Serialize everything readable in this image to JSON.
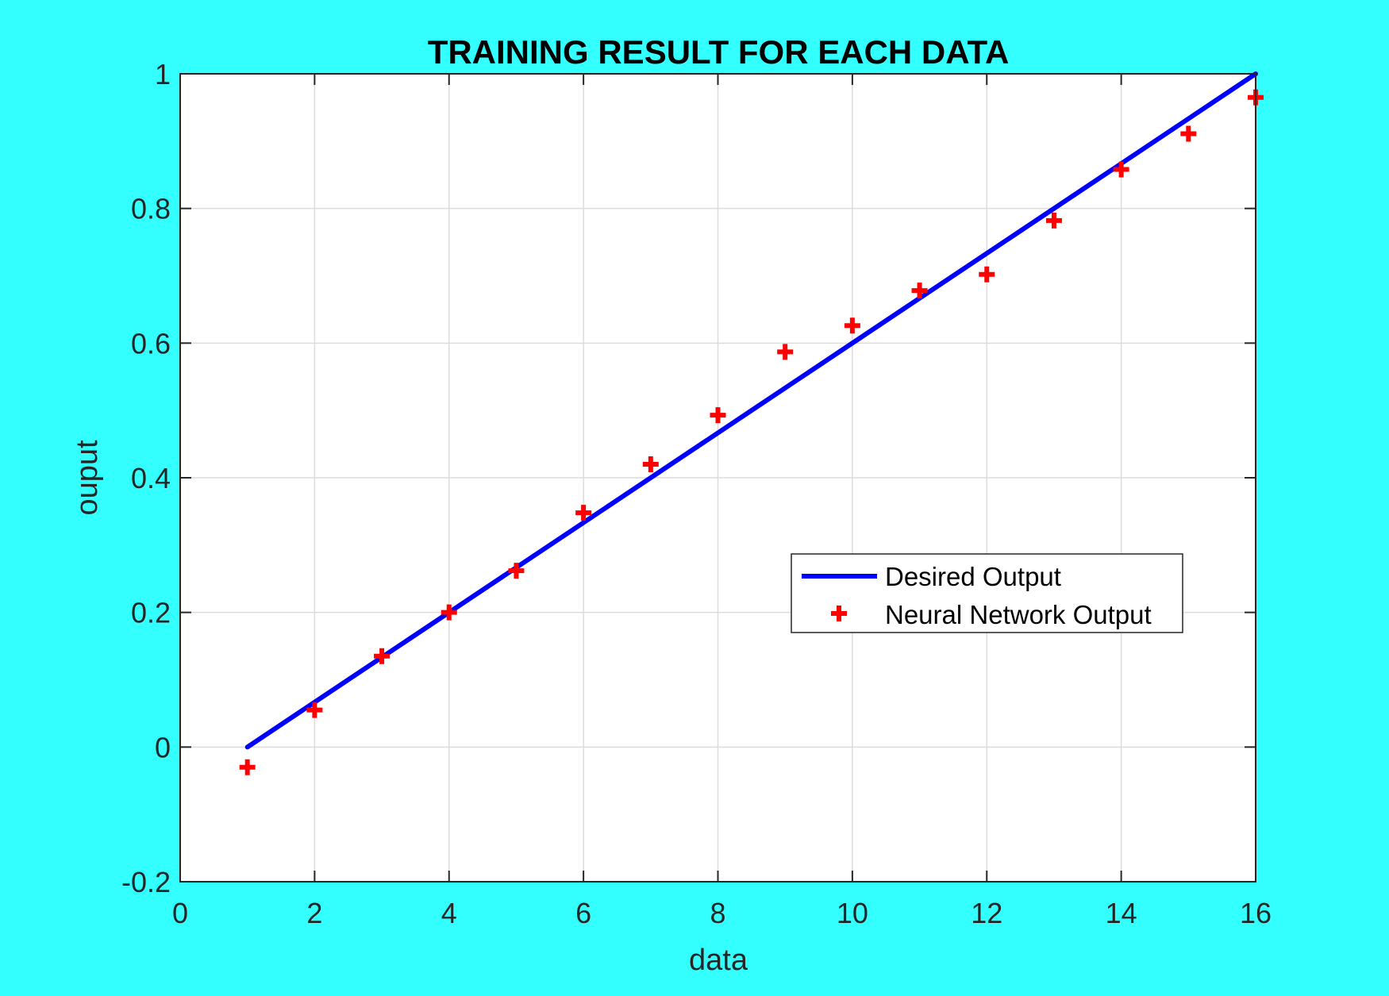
{
  "chart_data": {
    "type": "line",
    "title": "TRAINING RESULT FOR EACH DATA",
    "xlabel": "data",
    "ylabel": "ouput",
    "xlim": [
      0,
      16
    ],
    "ylim": [
      -0.2,
      1
    ],
    "x_ticks": [
      "0",
      "2",
      "4",
      "6",
      "8",
      "10",
      "12",
      "14",
      "16"
    ],
    "y_ticks": [
      "-0.2",
      "0",
      "0.2",
      "0.4",
      "0.6",
      "0.8",
      "1"
    ],
    "grid": true,
    "legend_position": "right, middle",
    "series": [
      {
        "name": "Desired Output",
        "style": "line",
        "color": "#0000ff",
        "x": [
          1,
          16
        ],
        "y": [
          0,
          1
        ]
      },
      {
        "name": "Neural Network Output",
        "style": "marker-plus",
        "color": "#ff0000",
        "x": [
          1,
          2,
          3,
          4,
          5,
          6,
          7,
          8,
          9,
          10,
          11,
          12,
          13,
          14,
          15,
          16
        ],
        "y": [
          -0.03,
          0.055,
          0.135,
          0.2,
          0.262,
          0.348,
          0.42,
          0.493,
          0.587,
          0.626,
          0.678,
          0.702,
          0.782,
          0.858,
          0.911,
          0.965
        ]
      }
    ]
  }
}
